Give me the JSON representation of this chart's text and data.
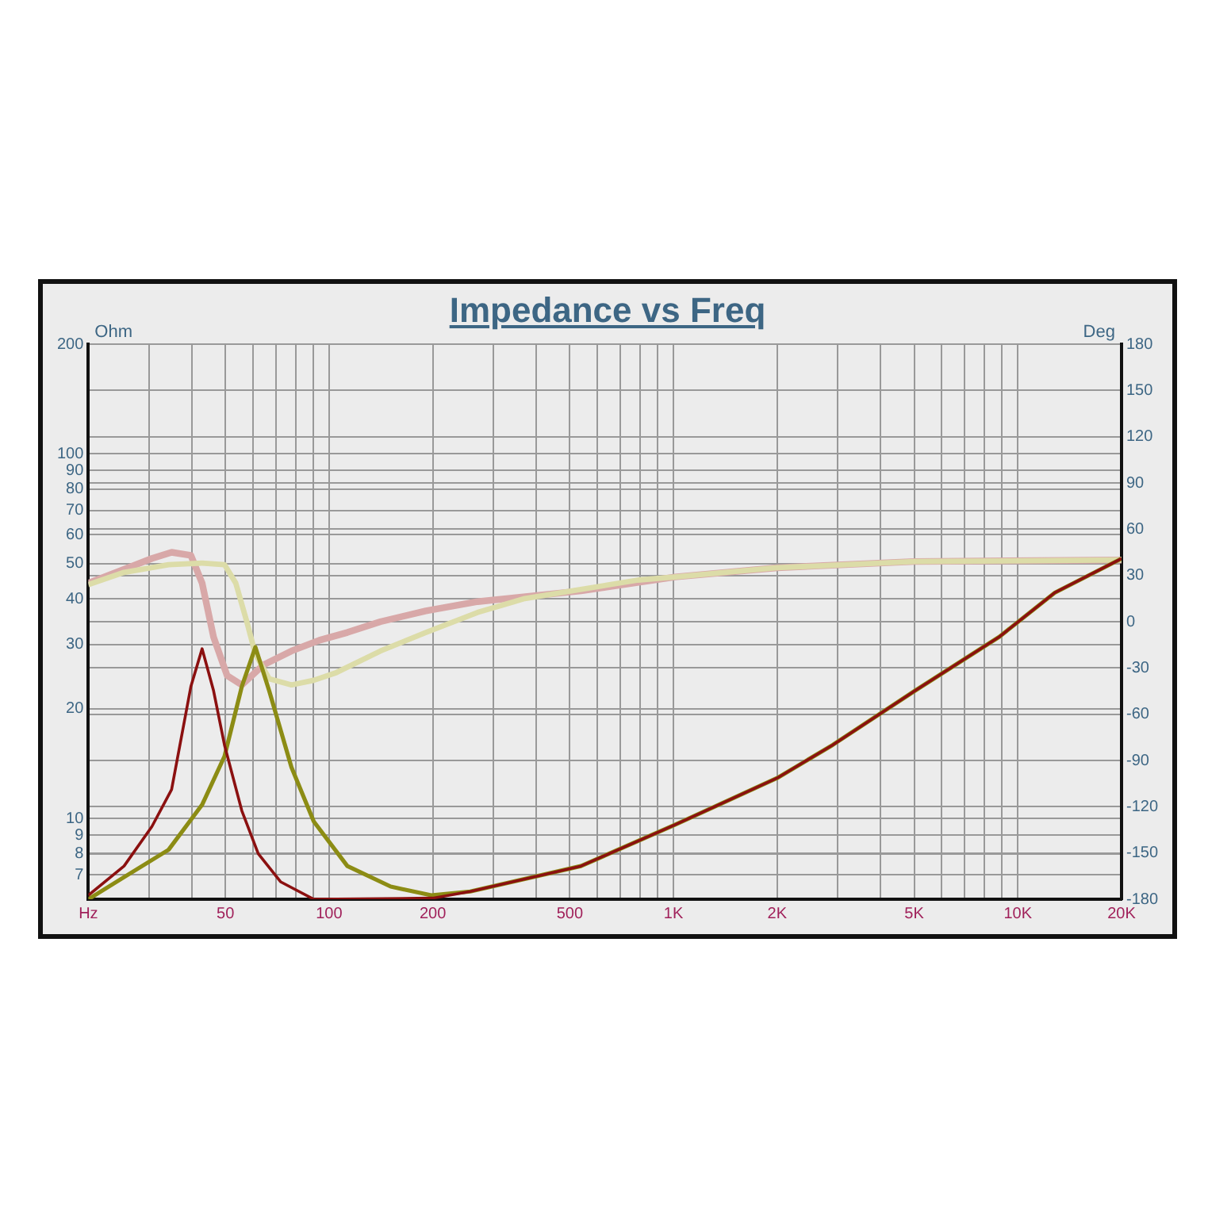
{
  "chart_data": {
    "type": "line",
    "title": "Impedance vs Freq",
    "ylabel": "Ohm",
    "y2label": "Deg",
    "log": "xy",
    "grid": true,
    "legend": false,
    "marker": "none",
    "line_style": "solid",
    "xlim": [
      20,
      20000
    ],
    "xticks": [
      {
        "value": 20,
        "label": "Hz"
      },
      {
        "value": 30,
        "label": null
      },
      {
        "value": 40,
        "label": null
      },
      50,
      {
        "value": 60,
        "label": null
      },
      {
        "value": 70,
        "label": null
      },
      {
        "value": 80,
        "label": null
      },
      {
        "value": 90,
        "label": null
      },
      100,
      200,
      {
        "value": 300,
        "label": null
      },
      {
        "value": 400,
        "label": null
      },
      500,
      {
        "value": 600,
        "label": null
      },
      {
        "value": 700,
        "label": null
      },
      {
        "value": 800,
        "label": null
      },
      {
        "value": 900,
        "label": null
      },
      {
        "value": 1000,
        "label": "1K"
      },
      {
        "value": 2000,
        "label": "2K"
      },
      {
        "value": 3000,
        "label": null
      },
      {
        "value": 4000,
        "label": null
      },
      {
        "value": 5000,
        "label": "5K"
      },
      {
        "value": 6000,
        "label": null
      },
      {
        "value": 7000,
        "label": null
      },
      {
        "value": 8000,
        "label": null
      },
      {
        "value": 9000,
        "label": null
      },
      {
        "value": 10000,
        "label": "10K"
      },
      {
        "value": 20000,
        "label": "20K"
      }
    ],
    "ylim": [
      6,
      200
    ],
    "yticks": [
      7,
      8,
      9,
      10,
      20,
      30,
      40,
      50,
      60,
      70,
      80,
      90,
      100,
      200
    ],
    "y2lim": [
      -180,
      180
    ],
    "y2ticks": [
      -180,
      -150,
      -120,
      -90,
      -60,
      -30,
      0,
      30,
      60,
      90,
      120,
      150,
      180
    ],
    "series": [
      {
        "color": "#d8a8a8",
        "axis": "y2",
        "x": [
          20,
          25.4,
          30.6,
          34.9,
          39.7,
          42.8,
          46.2,
          50.6,
          55.8,
          64.5,
          77.8,
          93.8,
          113,
          141,
          191,
          270,
          539,
          1010,
          2000,
          5000,
          20000
        ],
        "values": [
          25,
          34,
          41,
          45,
          43,
          25,
          -10,
          -35,
          -41,
          -28,
          -19,
          -12,
          -7,
          0,
          7,
          13,
          20,
          29,
          35,
          39,
          40
        ]
      },
      {
        "color": "#dcdca8",
        "axis": "y2",
        "x": [
          20,
          25.4,
          34.2,
          42.8,
          49.7,
          53.6,
          57.7,
          61.1,
          67,
          77.8,
          90.3,
          105,
          141,
          191,
          270,
          370,
          789,
          1010,
          2000,
          5000,
          20000
        ],
        "values": [
          24,
          32,
          37,
          38,
          37,
          25,
          0,
          -21,
          -37,
          -41,
          -38,
          -33,
          -19,
          -7,
          6,
          15,
          27,
          29,
          35,
          39,
          40
        ]
      },
      {
        "color": "#8c8c14",
        "axis": "y",
        "x": [
          20,
          25.4,
          34.2,
          42.8,
          49.7,
          55.8,
          61.1,
          67,
          77.8,
          90.3,
          113,
          151,
          198,
          257,
          539,
          1010,
          2000,
          2900,
          5030,
          8840,
          12800,
          20000
        ],
        "values": [
          6.0,
          6.9,
          8.2,
          10.9,
          14.8,
          23,
          29.5,
          22.4,
          13.8,
          9.8,
          7.4,
          6.5,
          6.15,
          6.3,
          7.4,
          9.6,
          12.9,
          15.9,
          22.4,
          31.5,
          41.6,
          51.6
        ]
      },
      {
        "color": "#8b1010",
        "axis": "y",
        "x": [
          20,
          25.4,
          30.6,
          34.9,
          39.7,
          42.8,
          46.2,
          49.7,
          55.8,
          62.3,
          72.3,
          90.3,
          200,
          257,
          539,
          1010,
          2000,
          2900,
          5030,
          8840,
          12800,
          20000
        ],
        "values": [
          6.15,
          7.4,
          9.5,
          12,
          23,
          29.2,
          22.4,
          15.9,
          10.5,
          8,
          6.7,
          6.0,
          6.04,
          6.3,
          7.4,
          9.6,
          12.9,
          15.9,
          22.4,
          31.5,
          41.6,
          51.6
        ]
      }
    ]
  }
}
